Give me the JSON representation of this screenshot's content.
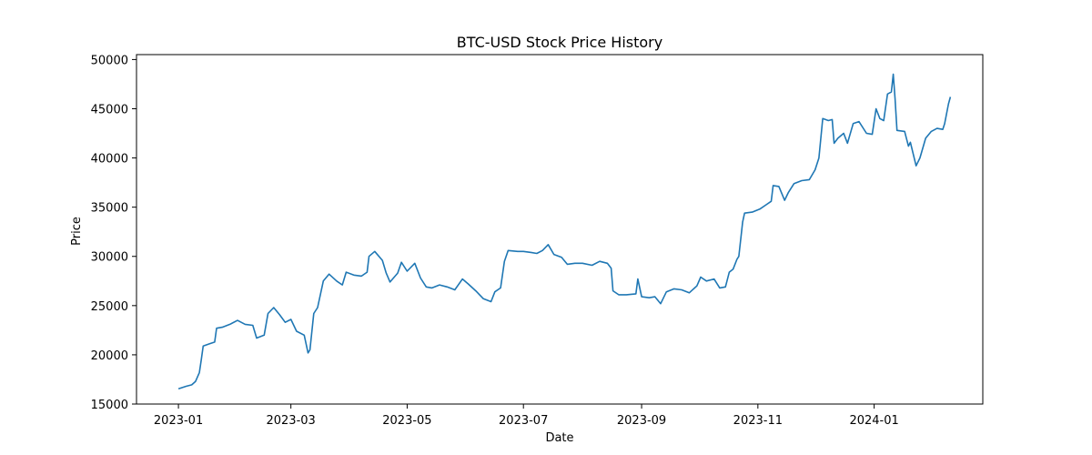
{
  "chart_data": {
    "type": "line",
    "title": "BTC-USD Stock Price History",
    "xlabel": "Date",
    "ylabel": "Price",
    "xlim": [
      "2022-12-10",
      "2024-02-27"
    ],
    "ylim": [
      15000,
      50500
    ],
    "grid": false,
    "line_color": "#1f77b4",
    "x_ticks": [
      {
        "date": "2023-01-01",
        "label": "2023-01"
      },
      {
        "date": "2023-03-01",
        "label": "2023-03"
      },
      {
        "date": "2023-05-01",
        "label": "2023-05"
      },
      {
        "date": "2023-07-01",
        "label": "2023-07"
      },
      {
        "date": "2023-09-01",
        "label": "2023-09"
      },
      {
        "date": "2023-11-01",
        "label": "2023-11"
      },
      {
        "date": "2024-01-01",
        "label": "2024-01"
      }
    ],
    "y_ticks": [
      15000,
      20000,
      25000,
      30000,
      35000,
      40000,
      45000,
      50000
    ],
    "series": [
      {
        "points": [
          [
            "2023-01-01",
            16550
          ],
          [
            "2023-01-05",
            16800
          ],
          [
            "2023-01-08",
            16950
          ],
          [
            "2023-01-10",
            17300
          ],
          [
            "2023-01-12",
            18200
          ],
          [
            "2023-01-13",
            19500
          ],
          [
            "2023-01-14",
            20900
          ],
          [
            "2023-01-17",
            21100
          ],
          [
            "2023-01-20",
            21300
          ],
          [
            "2023-01-21",
            22700
          ],
          [
            "2023-01-24",
            22800
          ],
          [
            "2023-01-28",
            23100
          ],
          [
            "2023-02-01",
            23500
          ],
          [
            "2023-02-05",
            23100
          ],
          [
            "2023-02-09",
            23000
          ],
          [
            "2023-02-11",
            21700
          ],
          [
            "2023-02-15",
            22000
          ],
          [
            "2023-02-17",
            24200
          ],
          [
            "2023-02-20",
            24800
          ],
          [
            "2023-02-23",
            24100
          ],
          [
            "2023-02-26",
            23300
          ],
          [
            "2023-03-01",
            23600
          ],
          [
            "2023-03-04",
            22400
          ],
          [
            "2023-03-08",
            22000
          ],
          [
            "2023-03-10",
            20200
          ],
          [
            "2023-03-11",
            20500
          ],
          [
            "2023-03-13",
            24200
          ],
          [
            "2023-03-15",
            24800
          ],
          [
            "2023-03-18",
            27500
          ],
          [
            "2023-03-21",
            28200
          ],
          [
            "2023-03-25",
            27500
          ],
          [
            "2023-03-28",
            27100
          ],
          [
            "2023-03-30",
            28400
          ],
          [
            "2023-04-03",
            28100
          ],
          [
            "2023-04-07",
            28000
          ],
          [
            "2023-04-10",
            28400
          ],
          [
            "2023-04-11",
            30000
          ],
          [
            "2023-04-14",
            30500
          ],
          [
            "2023-04-18",
            29600
          ],
          [
            "2023-04-20",
            28300
          ],
          [
            "2023-04-22",
            27400
          ],
          [
            "2023-04-26",
            28300
          ],
          [
            "2023-04-28",
            29400
          ],
          [
            "2023-05-01",
            28500
          ],
          [
            "2023-05-05",
            29300
          ],
          [
            "2023-05-08",
            27800
          ],
          [
            "2023-05-11",
            26900
          ],
          [
            "2023-05-14",
            26800
          ],
          [
            "2023-05-18",
            27100
          ],
          [
            "2023-05-22",
            26900
          ],
          [
            "2023-05-26",
            26600
          ],
          [
            "2023-05-30",
            27700
          ],
          [
            "2023-06-02",
            27200
          ],
          [
            "2023-06-06",
            26500
          ],
          [
            "2023-06-10",
            25700
          ],
          [
            "2023-06-14",
            25400
          ],
          [
            "2023-06-16",
            26400
          ],
          [
            "2023-06-19",
            26800
          ],
          [
            "2023-06-21",
            29500
          ],
          [
            "2023-06-23",
            30600
          ],
          [
            "2023-06-28",
            30500
          ],
          [
            "2023-07-01",
            30500
          ],
          [
            "2023-07-05",
            30400
          ],
          [
            "2023-07-08",
            30300
          ],
          [
            "2023-07-11",
            30600
          ],
          [
            "2023-07-14",
            31200
          ],
          [
            "2023-07-17",
            30200
          ],
          [
            "2023-07-21",
            29900
          ],
          [
            "2023-07-24",
            29200
          ],
          [
            "2023-07-28",
            29300
          ],
          [
            "2023-08-01",
            29300
          ],
          [
            "2023-08-06",
            29100
          ],
          [
            "2023-08-10",
            29500
          ],
          [
            "2023-08-14",
            29300
          ],
          [
            "2023-08-16",
            28800
          ],
          [
            "2023-08-17",
            26500
          ],
          [
            "2023-08-20",
            26100
          ],
          [
            "2023-08-24",
            26100
          ],
          [
            "2023-08-29",
            26200
          ],
          [
            "2023-08-30",
            27700
          ],
          [
            "2023-09-01",
            25900
          ],
          [
            "2023-09-05",
            25800
          ],
          [
            "2023-09-08",
            25900
          ],
          [
            "2023-09-11",
            25200
          ],
          [
            "2023-09-14",
            26400
          ],
          [
            "2023-09-18",
            26700
          ],
          [
            "2023-09-22",
            26600
          ],
          [
            "2023-09-26",
            26300
          ],
          [
            "2023-09-30",
            27000
          ],
          [
            "2023-10-02",
            27900
          ],
          [
            "2023-10-05",
            27500
          ],
          [
            "2023-10-09",
            27700
          ],
          [
            "2023-10-12",
            26800
          ],
          [
            "2023-10-15",
            26900
          ],
          [
            "2023-10-17",
            28400
          ],
          [
            "2023-10-19",
            28700
          ],
          [
            "2023-10-21",
            29700
          ],
          [
            "2023-10-22",
            30000
          ],
          [
            "2023-10-24",
            33500
          ],
          [
            "2023-10-25",
            34400
          ],
          [
            "2023-10-29",
            34500
          ],
          [
            "2023-11-02",
            34800
          ],
          [
            "2023-11-05",
            35200
          ],
          [
            "2023-11-08",
            35600
          ],
          [
            "2023-11-09",
            37200
          ],
          [
            "2023-11-12",
            37100
          ],
          [
            "2023-11-15",
            35700
          ],
          [
            "2023-11-17",
            36500
          ],
          [
            "2023-11-20",
            37400
          ],
          [
            "2023-11-24",
            37700
          ],
          [
            "2023-11-28",
            37800
          ],
          [
            "2023-12-01",
            38800
          ],
          [
            "2023-12-03",
            40000
          ],
          [
            "2023-12-05",
            44000
          ],
          [
            "2023-12-08",
            43800
          ],
          [
            "2023-12-10",
            43900
          ],
          [
            "2023-12-11",
            41500
          ],
          [
            "2023-12-13",
            42000
          ],
          [
            "2023-12-16",
            42500
          ],
          [
            "2023-12-18",
            41500
          ],
          [
            "2023-12-21",
            43500
          ],
          [
            "2023-12-24",
            43700
          ],
          [
            "2023-12-28",
            42500
          ],
          [
            "2023-12-31",
            42400
          ],
          [
            "2024-01-02",
            45000
          ],
          [
            "2024-01-04",
            44000
          ],
          [
            "2024-01-06",
            43800
          ],
          [
            "2024-01-08",
            46500
          ],
          [
            "2024-01-10",
            46700
          ],
          [
            "2024-01-11",
            48500
          ],
          [
            "2024-01-12",
            46000
          ],
          [
            "2024-01-13",
            42800
          ],
          [
            "2024-01-17",
            42700
          ],
          [
            "2024-01-19",
            41200
          ],
          [
            "2024-01-20",
            41600
          ],
          [
            "2024-01-22",
            40000
          ],
          [
            "2024-01-23",
            39200
          ],
          [
            "2024-01-25",
            40000
          ],
          [
            "2024-01-28",
            42000
          ],
          [
            "2024-01-31",
            42700
          ],
          [
            "2024-02-03",
            43000
          ],
          [
            "2024-02-06",
            42900
          ],
          [
            "2024-02-07",
            43500
          ],
          [
            "2024-02-08",
            44500
          ],
          [
            "2024-02-09",
            45500
          ],
          [
            "2024-02-10",
            46200
          ]
        ]
      }
    ]
  }
}
